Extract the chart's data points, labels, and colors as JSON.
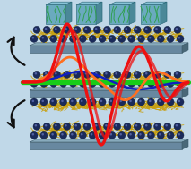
{
  "bg_color": "#c0d8e8",
  "platform_front": "#6888a0",
  "platform_top": "#88aabc",
  "platform_right": "#4a6878",
  "platform_edge": "#3a5868",
  "nano_color": "#1a2a5a",
  "nano_highlight": "#5060a0",
  "polymer_color": "#c8a010",
  "box_front": "#6aaabf",
  "box_top": "#88c4d8",
  "box_right": "#4a8898",
  "box_edge": "#2a6878",
  "plant_color": "#30a050",
  "line_red": "#ee1010",
  "line_orange": "#ff7020",
  "line_blue": "#1020c0",
  "line_green": "#18cc18",
  "arrow_color": "#111111",
  "figsize": [
    2.13,
    1.89
  ],
  "dpi": 100
}
